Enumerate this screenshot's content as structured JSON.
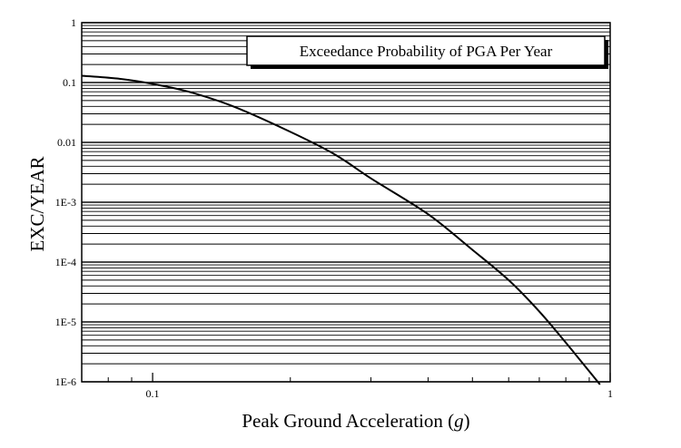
{
  "chart_data": {
    "type": "line",
    "xlabel": "Peak Ground Acceleration",
    "xlabel_unit": "g",
    "ylabel": "EXC/YEAR",
    "xscale": "log",
    "yscale": "log",
    "xlim": [
      0.07,
      1.0
    ],
    "ylim": [
      1e-06,
      1
    ],
    "x_ticks": [
      {
        "value": 0.1,
        "label": "0.1"
      },
      {
        "value": 1,
        "label": "1"
      }
    ],
    "y_ticks": [
      {
        "value": 1,
        "label": "1"
      },
      {
        "value": 0.1,
        "label": "0.1"
      },
      {
        "value": 0.01,
        "label": "0.01"
      },
      {
        "value": 0.001,
        "label": "1E-3"
      },
      {
        "value": 0.0001,
        "label": "1E-4"
      },
      {
        "value": 1e-05,
        "label": "1E-5"
      },
      {
        "value": 1e-06,
        "label": "1E-6"
      }
    ],
    "grid": {
      "horizontal_minor": true,
      "vertical": false
    },
    "legend": {
      "position": "top-right"
    },
    "series": [
      {
        "name": "Exceedance Probability of PGA Per Year",
        "color": "#000000",
        "x": [
          0.07,
          0.085,
          0.1,
          0.12,
          0.15,
          0.2,
          0.25,
          0.3,
          0.4,
          0.5,
          0.6,
          0.7,
          0.8,
          0.9,
          0.95
        ],
        "y": [
          0.13,
          0.115,
          0.095,
          0.07,
          0.04,
          0.015,
          0.0063,
          0.0025,
          0.00063,
          0.00016,
          5e-05,
          1.5e-05,
          4.5e-06,
          1.5e-06,
          9e-07
        ]
      }
    ]
  }
}
